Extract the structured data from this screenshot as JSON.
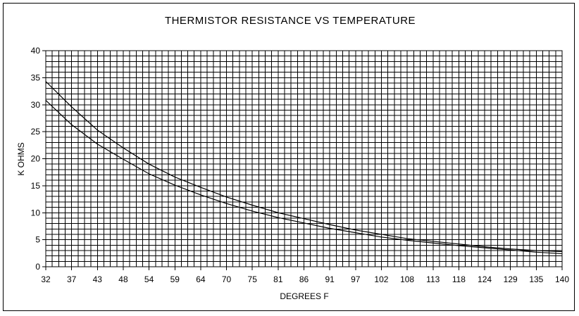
{
  "chart_data": {
    "type": "line",
    "title": "THERMISTOR RESISTANCE VS TEMPERATURE",
    "xlabel": "DEGREES F",
    "ylabel": "K OHMS",
    "xlim": [
      32,
      140
    ],
    "ylim": [
      0,
      40
    ],
    "x_ticks": [
      "32",
      "37",
      "43",
      "48",
      "54",
      "59",
      "64",
      "70",
      "75",
      "81",
      "86",
      "91",
      "97",
      "102",
      "108",
      "113",
      "118",
      "124",
      "129",
      "135",
      "140"
    ],
    "y_ticks": [
      "0",
      "5",
      "10",
      "15",
      "20",
      "25",
      "30",
      "35",
      "40"
    ],
    "grid": true,
    "legend": "none",
    "series": [
      {
        "x": [
          32,
          37,
          43,
          48,
          54,
          59,
          64,
          70,
          75,
          81,
          86,
          91,
          97,
          102,
          108,
          113,
          118,
          124,
          129,
          135,
          140
        ],
        "values": [
          34.3,
          29.6,
          25.3,
          22.0,
          19.0,
          16.6,
          14.7,
          12.9,
          11.4,
          10.0,
          8.9,
          7.8,
          6.8,
          6.0,
          5.2,
          4.7,
          4.2,
          3.7,
          3.3,
          3.0,
          2.8
        ]
      },
      {
        "x": [
          32,
          37,
          43,
          48,
          54,
          59,
          64,
          70,
          75,
          81,
          86,
          91,
          97,
          102,
          108,
          113,
          118,
          124,
          129,
          135,
          140
        ],
        "values": [
          30.8,
          26.3,
          22.7,
          19.9,
          17.2,
          15.1,
          13.3,
          11.7,
          10.3,
          9.1,
          8.1,
          7.1,
          6.3,
          5.5,
          4.9,
          4.4,
          3.9,
          3.5,
          3.1,
          2.7,
          2.4
        ]
      }
    ],
    "colors": {
      "line": "#000000",
      "grid": "#000000",
      "background": "#ffffff"
    }
  }
}
